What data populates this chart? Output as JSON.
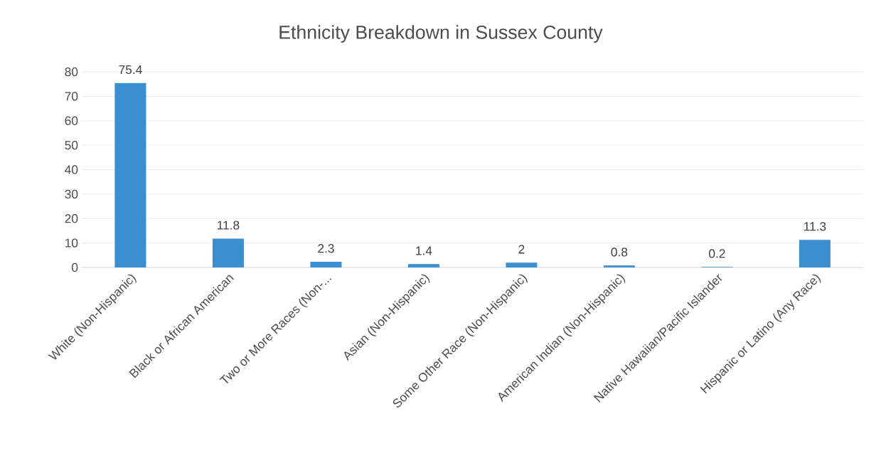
{
  "chart_data": {
    "type": "bar",
    "title": "Ethnicity Breakdown in Sussex County",
    "categories": [
      "White (Non-Hispanic)",
      "Black or African American",
      "Two or More Races (Non-...",
      "Asian (Non-Hispanic)",
      "Some Other Race (Non-Hispanic)",
      "American Indian (Non-Hispanic)",
      "Native Hawaiian/Pacific Islander",
      "Hispanic or Latino (Any Race)"
    ],
    "values": [
      75.4,
      11.8,
      2.3,
      1.4,
      2,
      0.8,
      0.2,
      11.3
    ],
    "color": "#3a8fd0",
    "ylim": [
      0,
      80
    ],
    "yticks": [
      0,
      10,
      20,
      30,
      40,
      50,
      60,
      70,
      80
    ],
    "grid": "y",
    "data_labels": true
  }
}
